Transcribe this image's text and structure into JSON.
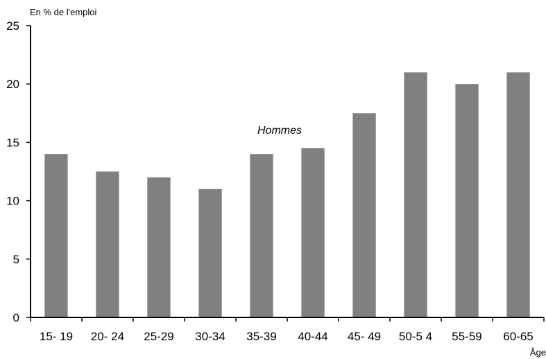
{
  "chart_data": {
    "type": "bar",
    "ylabel": "En % de l'emploi",
    "xlabel": "Âge",
    "annotation": "Hommes",
    "categories": [
      "15- 19",
      "20- 24",
      "25-29",
      "30-34",
      "35-39",
      "40-44",
      "45- 49",
      "50-5 4",
      "55-59",
      "60-65"
    ],
    "series": [
      {
        "values": [
          14,
          12.5,
          12,
          11,
          14,
          14.5,
          17.5,
          21,
          20,
          21
        ]
      }
    ],
    "ylim": [
      0,
      25
    ],
    "yticks": [
      0,
      5,
      10,
      15,
      20,
      25
    ],
    "ytick_labels": [
      "0",
      "5",
      "10",
      "15",
      "20",
      "25"
    ],
    "grid": false,
    "bar_color": "#808080"
  }
}
